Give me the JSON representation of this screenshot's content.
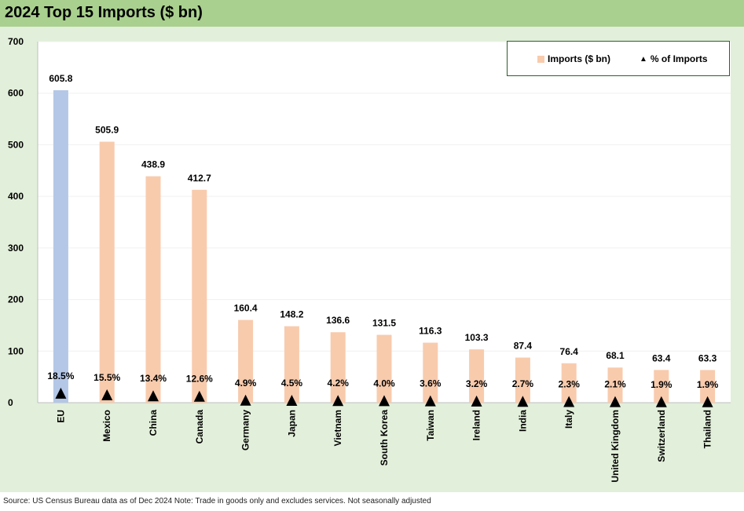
{
  "header": {
    "title": "2024 Top 15 Imports ($ bn)"
  },
  "footer": {
    "source": "Source: US Census Bureau data as of Dec 2024 Note: Trade in goods only and excludes services. Not seasonally adjusted"
  },
  "colors": {
    "header_bg": "#a9d08e",
    "panel_bg": "#e2efda",
    "highlight_bar": "#b4c7e7",
    "bar": "#f8cbad",
    "marker": "#000000"
  },
  "legend": {
    "bar_label": "Imports ($ bn)",
    "marker_label": "% of Imports",
    "marker_icon": "triangle-icon"
  },
  "chart_data": {
    "type": "bar",
    "title": "2024 Top 15 Imports ($ bn)",
    "categories": [
      "EU",
      "Mexico",
      "China",
      "Canada",
      "Germany",
      "Japan",
      "Vietnam",
      "South Korea",
      "Taiwan",
      "Ireland",
      "India",
      "Italy",
      "United Kingdom",
      "Switzerland",
      "Thailand"
    ],
    "series": [
      {
        "name": "Imports ($ bn)",
        "type": "bar",
        "values": [
          605.8,
          505.9,
          438.9,
          412.7,
          160.4,
          148.2,
          136.6,
          131.5,
          116.3,
          103.3,
          87.4,
          76.4,
          68.1,
          63.4,
          63.3
        ],
        "labels": [
          "605.8",
          "505.9",
          "438.9",
          "412.7",
          "160.4",
          "148.2",
          "136.6",
          "131.5",
          "116.3",
          "103.3",
          "87.4",
          "76.4",
          "68.1",
          "63.4",
          "63.3"
        ]
      },
      {
        "name": "% of Imports",
        "type": "marker",
        "values": [
          18.5,
          15.5,
          13.4,
          12.6,
          4.9,
          4.5,
          4.2,
          4.0,
          3.6,
          3.2,
          2.7,
          2.3,
          2.1,
          1.9,
          1.9
        ],
        "labels": [
          "18.5%",
          "15.5%",
          "13.4%",
          "12.6%",
          "4.9%",
          "4.5%",
          "4.2%",
          "4.0%",
          "3.6%",
          "3.2%",
          "2.7%",
          "2.3%",
          "2.1%",
          "1.9%",
          "1.9%"
        ]
      }
    ],
    "yticks": [
      "0",
      "100",
      "200",
      "300",
      "400",
      "500",
      "600",
      "700"
    ],
    "ylim": [
      0,
      700
    ],
    "highlight_category": "EU",
    "legend_position": "top-right"
  }
}
